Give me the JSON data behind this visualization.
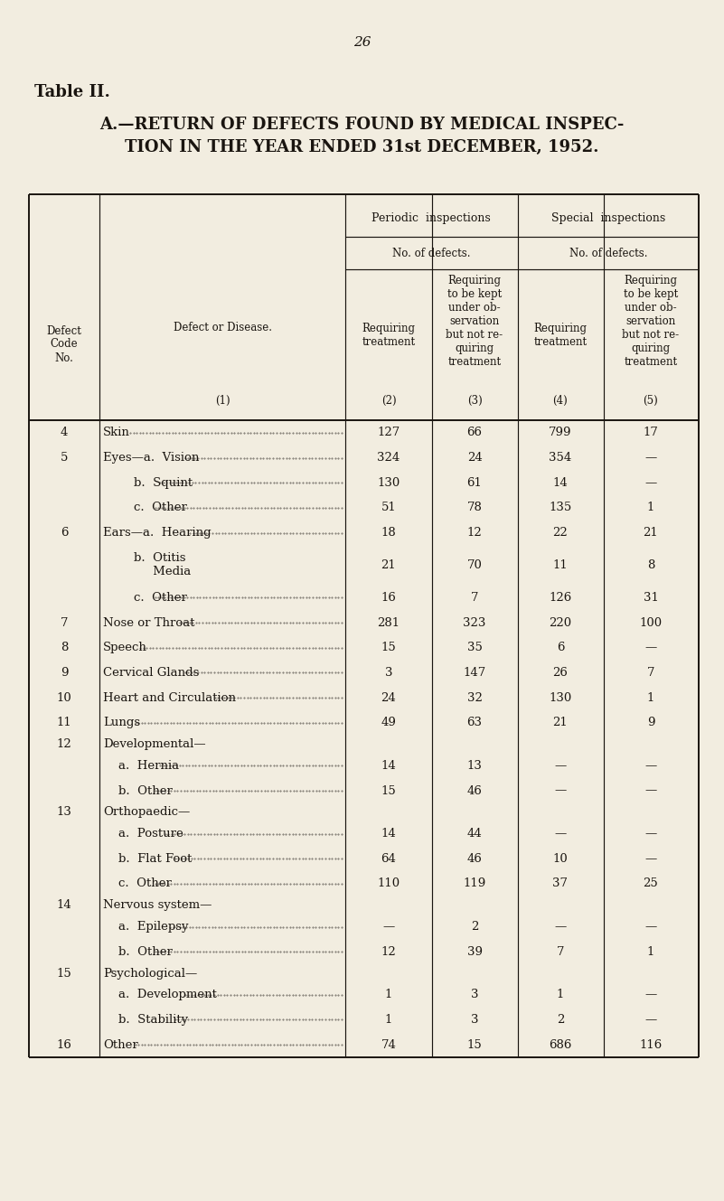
{
  "page_number": "26",
  "table_label": "Table II.",
  "title_line1": "A.—RETURN OF DEFECTS FOUND BY MEDICAL INSPEC-",
  "title_line2": "TION IN THE YEAR ENDED 31st DECEMBER, 1952.",
  "bg_color": "#f2ede0",
  "text_color": "#1a1510",
  "rows": [
    [
      "4",
      "Skin",
      "127",
      "66",
      "799",
      "17"
    ],
    [
      "5",
      "Eyes—a.  Vision",
      "324",
      "24",
      "354",
      "—"
    ],
    [
      "",
      "        b.  Squint",
      "130",
      "61",
      "14",
      "—"
    ],
    [
      "",
      "        c.  Other",
      "51",
      "78",
      "135",
      "1"
    ],
    [
      "6",
      "Ears—a.  Hearing",
      "18",
      "12",
      "22",
      "21"
    ],
    [
      "",
      "        b.  Otitis\n             Media",
      "21",
      "70",
      "11",
      "8"
    ],
    [
      "",
      "        c.  Other",
      "16",
      "7",
      "126",
      "31"
    ],
    [
      "7",
      "Nose or Throat",
      "281",
      "323",
      "220",
      "100"
    ],
    [
      "8",
      "Speech",
      "15",
      "35",
      "6",
      "—"
    ],
    [
      "9",
      "Cervical Glands",
      "3",
      "147",
      "26",
      "7"
    ],
    [
      "10",
      "Heart and Circulation",
      "24",
      "32",
      "130",
      "1"
    ],
    [
      "11",
      "Lungs",
      "49",
      "63",
      "21",
      "9"
    ],
    [
      "12",
      "Developmental—",
      "",
      "",
      "",
      ""
    ],
    [
      "",
      "    a.  Hernia",
      "14",
      "13",
      "—",
      "—"
    ],
    [
      "",
      "    b.  Other",
      "15",
      "46",
      "—",
      "—"
    ],
    [
      "13",
      "Orthopaedic—",
      "",
      "",
      "",
      ""
    ],
    [
      "",
      "    a.  Posture",
      "14",
      "44",
      "—",
      "—"
    ],
    [
      "",
      "    b.  Flat Foot",
      "64",
      "46",
      "10",
      "—"
    ],
    [
      "",
      "    c.  Other",
      "110",
      "119",
      "37",
      "25"
    ],
    [
      "14",
      "Nervous system—",
      "",
      "",
      "",
      ""
    ],
    [
      "",
      "    a.  Epilepsy",
      "—",
      "2",
      "—",
      "—"
    ],
    [
      "",
      "    b.  Other",
      "12",
      "39",
      "7",
      "1"
    ],
    [
      "15",
      "Psychological—",
      "",
      "",
      "",
      ""
    ],
    [
      "",
      "    a.  Development",
      "1",
      "3",
      "1",
      "—"
    ],
    [
      "",
      "    b.  Stability",
      "1",
      "3",
      "2",
      "—"
    ],
    [
      "16",
      "Other",
      "74",
      "15",
      "686",
      "116"
    ]
  ]
}
